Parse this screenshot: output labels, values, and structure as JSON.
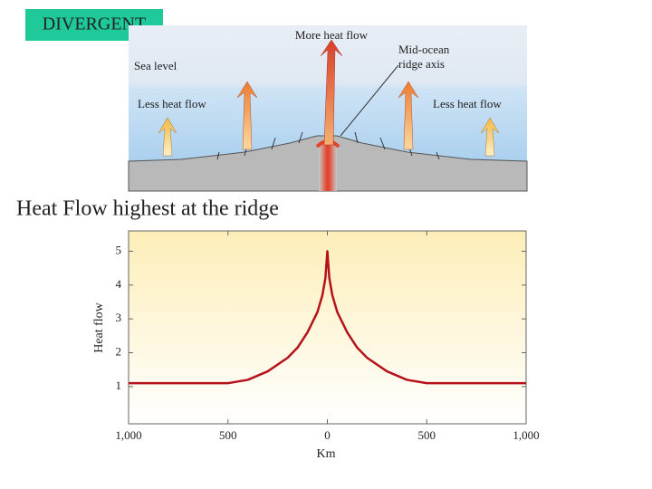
{
  "label": "DIVERGENT",
  "diagram": {
    "labels": [
      "More heat flow",
      "Mid-ocean",
      "ridge axis",
      "Sea level",
      "Less heat flow",
      "Less heat flow"
    ]
  },
  "heading": "Heat Flow highest at the ridge",
  "chart_data": {
    "type": "line",
    "x_label": "Km",
    "y_label": "Heat flow",
    "x": [
      -1000,
      -500,
      -400,
      -300,
      -200,
      -150,
      -100,
      -50,
      -25,
      -10,
      0,
      10,
      25,
      50,
      100,
      150,
      200,
      300,
      400,
      500,
      1000
    ],
    "values": [
      1.1,
      1.1,
      1.2,
      1.45,
      1.85,
      2.15,
      2.6,
      3.2,
      3.7,
      4.2,
      5,
      4.2,
      3.7,
      3.2,
      2.6,
      2.15,
      1.85,
      1.45,
      1.2,
      1.1,
      1.1
    ],
    "color": "#b5121b",
    "xlim": [
      -1000,
      1000
    ],
    "ylim": [
      -0.1,
      5.6
    ],
    "xticks": [
      {
        "value": -1000,
        "label": "1,000"
      },
      {
        "value": -500,
        "label": "500"
      },
      0,
      {
        "value": 500,
        "label": "500"
      },
      {
        "value": 1000,
        "label": "1,000"
      }
    ],
    "yticks": [
      1,
      2,
      3,
      4,
      5
    ],
    "grid": false
  }
}
